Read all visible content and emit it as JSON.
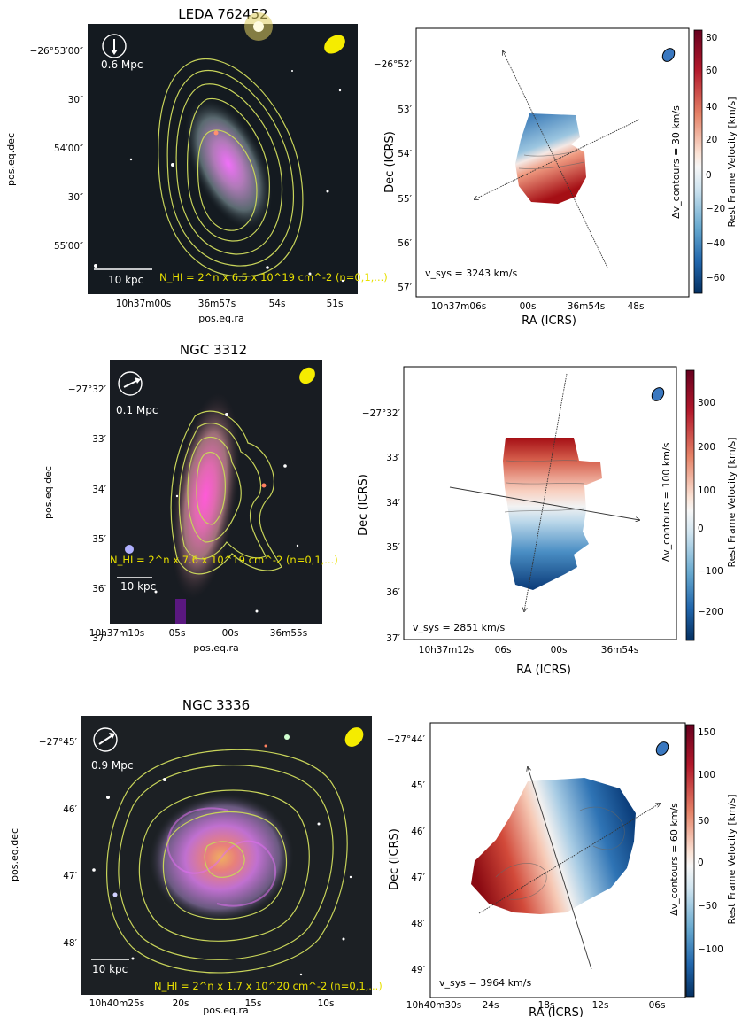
{
  "colors": {
    "hi_contour": "#c8d45a",
    "beam": "#f5ec00",
    "receding": "#a50f15",
    "approaching": "#08306b",
    "annotation": "#e8e000"
  },
  "rows": [
    {
      "title": "LEDA 762452",
      "optical": {
        "dec_ticks": [
          "−26°53′00″",
          "30″",
          "54′00″",
          "30″",
          "55′00″"
        ],
        "ra_ticks": [
          "10h37m00s",
          "36m57s",
          "54s",
          "51s"
        ],
        "xlabel": "pos.eq.ra",
        "ylabel": "pos.eq.dec",
        "distance": "0.6 Mpc",
        "scale_bar": "10 kpc",
        "nhi": "N_HI = 2^n x 6.5 x 10^19 cm^-2 (n=0,1,...)"
      },
      "velocity": {
        "dec_ticks": [
          "−26°52′",
          "53′",
          "54′",
          "55′",
          "56′",
          "57′"
        ],
        "ra_ticks": [
          "10h37m06s",
          "00s",
          "36m54s",
          "48s"
        ],
        "xlabel": "RA (ICRS)",
        "ylabel": "Dec (ICRS)",
        "vsys": "v_sys = 3243 km/s",
        "contour_label": "Δv_contours = 30 km/s",
        "cbar_label": "Rest Frame Velocity [km/s]",
        "cbar_ticks": [
          "80",
          "60",
          "40",
          "20",
          "0",
          "−20",
          "−40",
          "−60"
        ]
      }
    },
    {
      "title": "NGC 3312",
      "optical": {
        "dec_ticks": [
          "−27°32′",
          "33′",
          "34′",
          "35′",
          "36′",
          "37′"
        ],
        "ra_ticks": [
          "10h37m10s",
          "05s",
          "00s",
          "36m55s"
        ],
        "xlabel": "pos.eq.ra",
        "ylabel": "pos.eq.dec",
        "distance": "0.1 Mpc",
        "scale_bar": "10 kpc",
        "nhi": "N_HI = 2^n x 7.6 x 10^19 cm^-2 (n=0,1,...)"
      },
      "velocity": {
        "dec_ticks": [
          "−27°32′",
          "33′",
          "34′",
          "35′",
          "36′",
          "37′"
        ],
        "ra_ticks": [
          "10h37m12s",
          "06s",
          "00s",
          "36m54s"
        ],
        "xlabel": "RA (ICRS)",
        "ylabel": "Dec (ICRS)",
        "vsys": "v_sys = 2851 km/s",
        "contour_label": "Δv_contours = 100 km/s",
        "cbar_label": "Rest Frame Velocity [km/s]",
        "cbar_ticks": [
          "300",
          "200",
          "100",
          "0",
          "−100",
          "−200"
        ]
      }
    },
    {
      "title": "NGC 3336",
      "optical": {
        "dec_ticks": [
          "−27°45′",
          "46′",
          "47′",
          "48′"
        ],
        "ra_ticks": [
          "10h40m25s",
          "20s",
          "15s",
          "10s"
        ],
        "xlabel": "pos.eq.ra",
        "ylabel": "pos.eq.dec",
        "distance": "0.9 Mpc",
        "scale_bar": "10 kpc",
        "nhi": "N_HI = 2^n x 1.7 x 10^20 cm^-2 (n=0,1,...)"
      },
      "velocity": {
        "dec_ticks": [
          "−27°44′",
          "45′",
          "46′",
          "47′",
          "48′",
          "49′"
        ],
        "ra_ticks": [
          "10h40m30s",
          "24s",
          "18s",
          "12s",
          "06s"
        ],
        "xlabel": "RA (ICRS)",
        "ylabel": "Dec (ICRS)",
        "vsys": "v_sys = 3964 km/s",
        "contour_label": "Δv_contours = 60 km/s",
        "cbar_label": "Rest Frame Velocity [km/s]",
        "cbar_ticks": [
          "150",
          "100",
          "50",
          "0",
          "−50",
          "−100"
        ]
      }
    }
  ]
}
